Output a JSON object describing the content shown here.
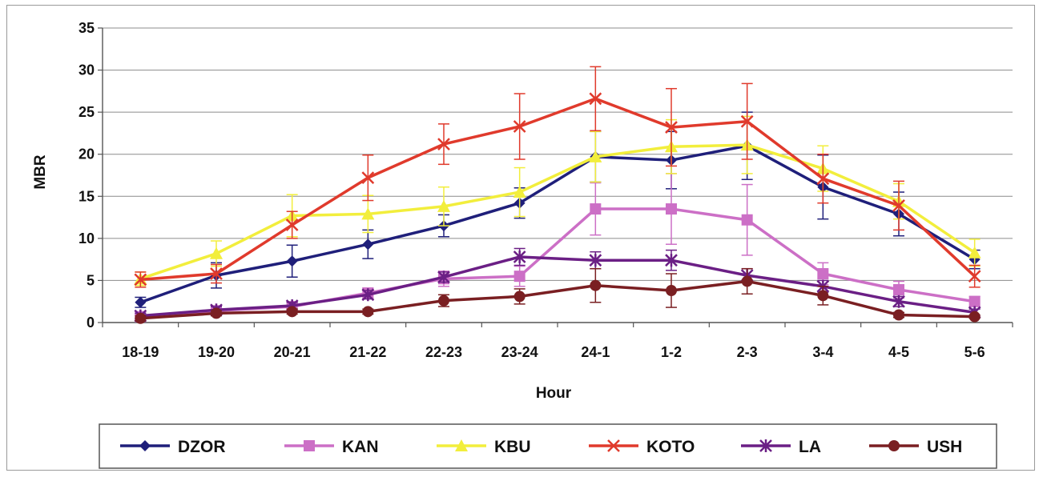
{
  "chart_data": {
    "type": "line",
    "xlabel": "Hour",
    "ylabel": "MBR",
    "ylim": [
      0,
      35
    ],
    "yticks": [
      "0",
      "5",
      "10",
      "15",
      "20",
      "25",
      "30",
      "35"
    ],
    "categories": [
      "18-19",
      "19-20",
      "20-21",
      "21-22",
      "22-23",
      "23-24",
      "24-1",
      "1-2",
      "2-3",
      "3-4",
      "4-5",
      "5-6"
    ],
    "grid": "horizontal",
    "legend_position": "bottom",
    "series": [
      {
        "name": "DZOR",
        "color": "#1f1f7a",
        "marker": "diamond",
        "values": [
          2.4,
          5.6,
          7.3,
          9.3,
          11.5,
          14.2,
          19.7,
          19.3,
          21.0,
          16.1,
          12.9,
          7.5
        ],
        "errors": [
          0.6,
          1.5,
          1.9,
          1.7,
          1.3,
          1.8,
          3.0,
          3.4,
          4.0,
          3.8,
          2.6,
          1.1
        ]
      },
      {
        "name": "KAN",
        "color": "#cc6fc6",
        "marker": "square",
        "values": [
          0.7,
          1.4,
          1.9,
          3.5,
          5.2,
          5.5,
          13.5,
          13.5,
          12.2,
          5.8,
          3.9,
          2.5
        ],
        "errors": [
          0.3,
          0.4,
          0.5,
          0.6,
          0.9,
          1.2,
          3.1,
          4.2,
          4.2,
          1.3,
          1.0,
          0.6
        ]
      },
      {
        "name": "KBU",
        "color": "#f2ee3c",
        "marker": "triangle",
        "values": [
          5.2,
          8.2,
          12.7,
          12.9,
          13.8,
          15.5,
          19.7,
          20.9,
          21.1,
          18.3,
          14.4,
          8.3
        ],
        "errors": [
          0.8,
          1.5,
          2.5,
          2.2,
          2.3,
          2.9,
          3.0,
          3.2,
          3.4,
          2.7,
          2.1,
          1.6
        ]
      },
      {
        "name": "KOTO",
        "color": "#e03a2c",
        "marker": "x",
        "values": [
          5.1,
          5.8,
          11.6,
          17.2,
          21.2,
          23.3,
          26.6,
          23.2,
          23.9,
          17.1,
          13.9,
          5.5
        ],
        "errors": [
          0.9,
          1.1,
          1.6,
          2.7,
          2.4,
          3.9,
          3.8,
          4.6,
          4.5,
          2.9,
          2.9,
          1.3
        ]
      },
      {
        "name": "LA",
        "color": "#6b1f85",
        "marker": "asterisk",
        "values": [
          0.8,
          1.5,
          2.0,
          3.3,
          5.4,
          7.8,
          7.4,
          7.4,
          5.6,
          4.3,
          2.5,
          1.2
        ],
        "errors": [
          0.3,
          0.4,
          0.4,
          0.5,
          0.6,
          1.0,
          1.0,
          1.2,
          0.8,
          0.7,
          0.6,
          0.4
        ]
      },
      {
        "name": "USH",
        "color": "#7a1f22",
        "marker": "circle",
        "values": [
          0.5,
          1.1,
          1.3,
          1.3,
          2.6,
          3.1,
          4.4,
          3.8,
          4.9,
          3.2,
          0.9,
          0.7
        ],
        "errors": [
          0.3,
          0.3,
          0.3,
          0.3,
          0.7,
          0.9,
          2.0,
          2.0,
          1.5,
          1.1,
          0.3,
          0.2
        ]
      }
    ]
  }
}
